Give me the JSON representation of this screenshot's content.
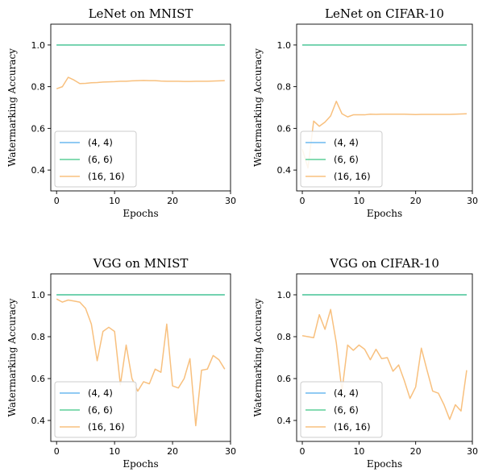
{
  "colors": {
    "series": [
      "#6cb8ef",
      "#5dcf98",
      "#f8c07e"
    ]
  },
  "chart_data": [
    {
      "type": "line",
      "title": "LeNet on MNIST",
      "xlabel": "Epochs",
      "ylabel": "Watermarking Accuracy",
      "xlim": [
        -1,
        30
      ],
      "ylim": [
        0.3,
        1.1
      ],
      "xticks": [
        {
          "v": 0,
          "label": "0"
        },
        {
          "v": 10,
          "label": "10"
        },
        {
          "v": 20,
          "label": "20"
        },
        {
          "v": 30,
          "label": "30"
        }
      ],
      "yticks": [
        {
          "v": 0.4,
          "label": "0.4"
        },
        {
          "v": 0.6,
          "label": "0.6"
        },
        {
          "v": 0.8,
          "label": "0.8"
        },
        {
          "v": 1.0,
          "label": "1.0"
        }
      ],
      "grid": false,
      "legend": "lower left",
      "x": [
        0,
        1,
        2,
        3,
        4,
        5,
        6,
        7,
        8,
        9,
        10,
        11,
        12,
        13,
        14,
        15,
        16,
        17,
        18,
        19,
        20,
        21,
        22,
        23,
        24,
        25,
        26,
        27,
        28,
        29
      ],
      "series": [
        {
          "name": "(4, 4)",
          "values": [
            1,
            1,
            1,
            1,
            1,
            1,
            1,
            1,
            1,
            1,
            1,
            1,
            1,
            1,
            1,
            1,
            1,
            1,
            1,
            1,
            1,
            1,
            1,
            1,
            1,
            1,
            1,
            1,
            1,
            1
          ]
        },
        {
          "name": "(6, 6)",
          "values": [
            1,
            1,
            1,
            1,
            1,
            1,
            1,
            1,
            1,
            1,
            1,
            1,
            1,
            1,
            1,
            1,
            1,
            1,
            1,
            1,
            1,
            1,
            1,
            1,
            1,
            1,
            1,
            1,
            1,
            1
          ]
        },
        {
          "name": "(16, 16)",
          "values": [
            0.79,
            0.8,
            0.845,
            0.832,
            0.815,
            0.816,
            0.819,
            0.82,
            0.822,
            0.823,
            0.824,
            0.826,
            0.826,
            0.828,
            0.829,
            0.83,
            0.829,
            0.829,
            0.827,
            0.826,
            0.826,
            0.826,
            0.825,
            0.825,
            0.826,
            0.826,
            0.826,
            0.827,
            0.828,
            0.829
          ]
        }
      ]
    },
    {
      "type": "line",
      "title": "LeNet on CIFAR-10",
      "xlabel": "Epochs",
      "ylabel": "Watermarking Accuracy",
      "xlim": [
        -1,
        30
      ],
      "ylim": [
        0.3,
        1.1
      ],
      "xticks": [
        {
          "v": 0,
          "label": "0"
        },
        {
          "v": 10,
          "label": "10"
        },
        {
          "v": 20,
          "label": "20"
        },
        {
          "v": 30,
          "label": "30"
        }
      ],
      "yticks": [
        {
          "v": 0.4,
          "label": "0.4"
        },
        {
          "v": 0.6,
          "label": "0.6"
        },
        {
          "v": 0.8,
          "label": "0.8"
        },
        {
          "v": 1.0,
          "label": "1.0"
        }
      ],
      "grid": false,
      "legend": "lower left",
      "x": [
        0,
        1,
        2,
        3,
        4,
        5,
        6,
        7,
        8,
        9,
        10,
        11,
        12,
        13,
        14,
        15,
        16,
        17,
        18,
        19,
        20,
        21,
        22,
        23,
        24,
        25,
        26,
        27,
        28,
        29
      ],
      "series": [
        {
          "name": "(4, 4)",
          "values": [
            1,
            1,
            1,
            1,
            1,
            1,
            1,
            1,
            1,
            1,
            1,
            1,
            1,
            1,
            1,
            1,
            1,
            1,
            1,
            1,
            1,
            1,
            1,
            1,
            1,
            1,
            1,
            1,
            1,
            1
          ]
        },
        {
          "name": "(6, 6)",
          "values": [
            1,
            1,
            1,
            1,
            1,
            1,
            1,
            1,
            1,
            1,
            1,
            1,
            1,
            1,
            1,
            1,
            1,
            1,
            1,
            1,
            1,
            1,
            1,
            1,
            1,
            1,
            1,
            1,
            1,
            1
          ]
        },
        {
          "name": "(16, 16)",
          "values": [
            0.5,
            0.41,
            0.635,
            0.61,
            0.63,
            0.66,
            0.73,
            0.67,
            0.655,
            0.665,
            0.665,
            0.665,
            0.668,
            0.667,
            0.668,
            0.668,
            0.668,
            0.668,
            0.668,
            0.667,
            0.666,
            0.667,
            0.667,
            0.667,
            0.667,
            0.667,
            0.667,
            0.668,
            0.669,
            0.67
          ]
        }
      ]
    },
    {
      "type": "line",
      "title": "VGG on MNIST",
      "xlabel": "Epochs",
      "ylabel": "Watermarking Accuracy",
      "xlim": [
        -1,
        30
      ],
      "ylim": [
        0.3,
        1.1
      ],
      "xticks": [
        {
          "v": 0,
          "label": "0"
        },
        {
          "v": 10,
          "label": "10"
        },
        {
          "v": 20,
          "label": "20"
        },
        {
          "v": 30,
          "label": "30"
        }
      ],
      "yticks": [
        {
          "v": 0.4,
          "label": "0.4"
        },
        {
          "v": 0.6,
          "label": "0.6"
        },
        {
          "v": 0.8,
          "label": "0.8"
        },
        {
          "v": 1.0,
          "label": "1.0"
        }
      ],
      "grid": false,
      "legend": "lower left",
      "x": [
        0,
        1,
        2,
        3,
        4,
        5,
        6,
        7,
        8,
        9,
        10,
        11,
        12,
        13,
        14,
        15,
        16,
        17,
        18,
        19,
        20,
        21,
        22,
        23,
        24,
        25,
        26,
        27,
        28,
        29
      ],
      "series": [
        {
          "name": "(4, 4)",
          "values": [
            1,
            1,
            1,
            1,
            1,
            1,
            1,
            1,
            1,
            1,
            1,
            1,
            1,
            1,
            1,
            1,
            1,
            1,
            1,
            1,
            1,
            1,
            1,
            1,
            1,
            1,
            1,
            1,
            1,
            1
          ]
        },
        {
          "name": "(6, 6)",
          "values": [
            1,
            1,
            1,
            1,
            1,
            1,
            1,
            1,
            1,
            1,
            1,
            1,
            1,
            1,
            1,
            1,
            1,
            1,
            1,
            1,
            1,
            1,
            1,
            1,
            1,
            1,
            1,
            1,
            1,
            1
          ]
        },
        {
          "name": "(16, 16)",
          "values": [
            0.98,
            0.965,
            0.975,
            0.97,
            0.965,
            0.935,
            0.86,
            0.685,
            0.825,
            0.845,
            0.825,
            0.57,
            0.76,
            0.6,
            0.54,
            0.585,
            0.575,
            0.645,
            0.63,
            0.86,
            0.565,
            0.555,
            0.6,
            0.695,
            0.375,
            0.64,
            0.645,
            0.71,
            0.69,
            0.645
          ]
        }
      ]
    },
    {
      "type": "line",
      "title": "VGG on CIFAR-10",
      "xlabel": "Epochs",
      "ylabel": "Watermarking Accuracy",
      "xlim": [
        -1,
        30
      ],
      "ylim": [
        0.3,
        1.1
      ],
      "xticks": [
        {
          "v": 0,
          "label": "0"
        },
        {
          "v": 10,
          "label": "10"
        },
        {
          "v": 20,
          "label": "20"
        },
        {
          "v": 30,
          "label": "30"
        }
      ],
      "yticks": [
        {
          "v": 0.4,
          "label": "0.4"
        },
        {
          "v": 0.6,
          "label": "0.6"
        },
        {
          "v": 0.8,
          "label": "0.8"
        },
        {
          "v": 1.0,
          "label": "1.0"
        }
      ],
      "grid": false,
      "legend": "lower left",
      "x": [
        0,
        1,
        2,
        3,
        4,
        5,
        6,
        7,
        8,
        9,
        10,
        11,
        12,
        13,
        14,
        15,
        16,
        17,
        18,
        19,
        20,
        21,
        22,
        23,
        24,
        25,
        26,
        27,
        28,
        29
      ],
      "series": [
        {
          "name": "(4, 4)",
          "values": [
            1,
            1,
            1,
            1,
            1,
            1,
            1,
            1,
            1,
            1,
            1,
            1,
            1,
            1,
            1,
            1,
            1,
            1,
            1,
            1,
            1,
            1,
            1,
            1,
            1,
            1,
            1,
            1,
            1,
            1
          ]
        },
        {
          "name": "(6, 6)",
          "values": [
            1,
            1,
            1,
            1,
            1,
            1,
            1,
            1,
            1,
            1,
            1,
            1,
            1,
            1,
            1,
            1,
            1,
            1,
            1,
            1,
            1,
            1,
            1,
            1,
            1,
            1,
            1,
            1,
            1,
            1
          ]
        },
        {
          "name": "(16, 16)",
          "values": [
            0.805,
            0.8,
            0.795,
            0.905,
            0.835,
            0.93,
            0.77,
            0.54,
            0.76,
            0.735,
            0.76,
            0.74,
            0.69,
            0.74,
            0.695,
            0.7,
            0.635,
            0.665,
            0.59,
            0.505,
            0.56,
            0.745,
            0.64,
            0.54,
            0.53,
            0.475,
            0.405,
            0.475,
            0.445,
            0.64
          ]
        }
      ]
    }
  ]
}
